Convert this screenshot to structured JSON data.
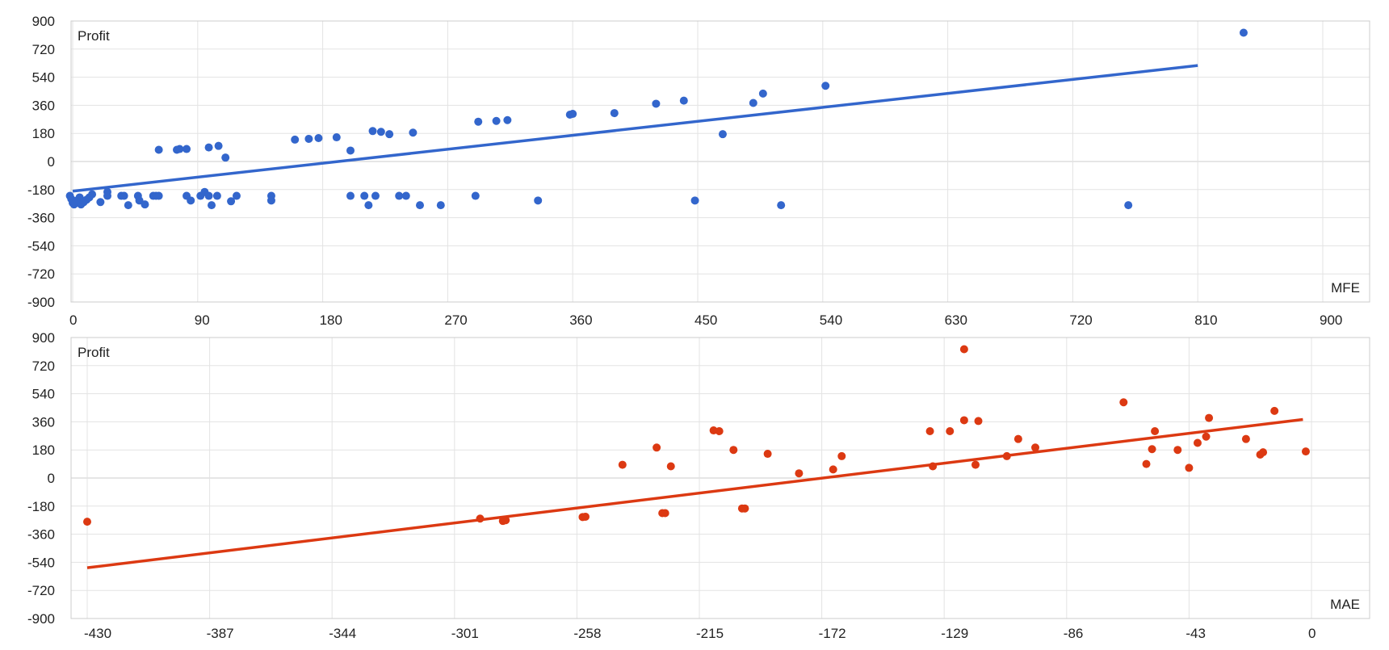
{
  "chart_data": [
    {
      "type": "scatter",
      "ylabel": "Profit",
      "xlabel": "MFE",
      "xlim": [
        0,
        900
      ],
      "ylim": [
        -900,
        900
      ],
      "x_ticks": [
        0,
        90,
        180,
        270,
        360,
        450,
        540,
        630,
        720,
        810,
        900
      ],
      "y_ticks": [
        900,
        720,
        540,
        360,
        180,
        0,
        -180,
        -360,
        -540,
        -720,
        -900
      ],
      "grid": true,
      "point_color": "#3366cc",
      "trendline_color": "#3366cc",
      "trendline": [
        [
          0,
          -190
        ],
        [
          810,
          615
        ]
      ],
      "points": [
        [
          -2,
          -220
        ],
        [
          -1,
          -240
        ],
        [
          0,
          -265
        ],
        [
          1,
          -275
        ],
        [
          3,
          -250
        ],
        [
          5,
          -230
        ],
        [
          6,
          -275
        ],
        [
          8,
          -260
        ],
        [
          10,
          -245
        ],
        [
          12,
          -230
        ],
        [
          14,
          -210
        ],
        [
          20,
          -260
        ],
        [
          25,
          -195
        ],
        [
          25,
          -220
        ],
        [
          35,
          -220
        ],
        [
          37,
          -220
        ],
        [
          40,
          -280
        ],
        [
          47,
          -220
        ],
        [
          48,
          -250
        ],
        [
          52,
          -275
        ],
        [
          58,
          -220
        ],
        [
          60,
          -220
        ],
        [
          62,
          -220
        ],
        [
          62,
          75
        ],
        [
          75,
          75
        ],
        [
          77,
          80
        ],
        [
          82,
          80
        ],
        [
          82,
          -220
        ],
        [
          85,
          -250
        ],
        [
          92,
          -220
        ],
        [
          95,
          -195
        ],
        [
          98,
          -220
        ],
        [
          98,
          90
        ],
        [
          100,
          -280
        ],
        [
          104,
          -220
        ],
        [
          105,
          100
        ],
        [
          110,
          25
        ],
        [
          114,
          -255
        ],
        [
          118,
          -220
        ],
        [
          143,
          -220
        ],
        [
          143,
          -250
        ],
        [
          160,
          140
        ],
        [
          170,
          145
        ],
        [
          177,
          150
        ],
        [
          190,
          155
        ],
        [
          200,
          -220
        ],
        [
          200,
          70
        ],
        [
          210,
          -220
        ],
        [
          213,
          -280
        ],
        [
          216,
          195
        ],
        [
          218,
          -220
        ],
        [
          222,
          190
        ],
        [
          228,
          175
        ],
        [
          235,
          -220
        ],
        [
          240,
          -220
        ],
        [
          245,
          185
        ],
        [
          250,
          -280
        ],
        [
          265,
          -280
        ],
        [
          290,
          -220
        ],
        [
          292,
          255
        ],
        [
          305,
          260
        ],
        [
          313,
          265
        ],
        [
          335,
          -250
        ],
        [
          358,
          300
        ],
        [
          360,
          305
        ],
        [
          390,
          310
        ],
        [
          420,
          370
        ],
        [
          440,
          390
        ],
        [
          448,
          -250
        ],
        [
          468,
          175
        ],
        [
          490,
          375
        ],
        [
          497,
          435
        ],
        [
          510,
          -280
        ],
        [
          542,
          485
        ],
        [
          760,
          -280
        ],
        [
          843,
          825
        ]
      ],
      "point_coords_note": ""
    },
    {
      "type": "scatter",
      "ylabel": "Profit",
      "xlabel": "MAE",
      "xlim": [
        -430,
        0
      ],
      "ylim": [
        -900,
        900
      ],
      "x_ticks": [
        -430,
        -387,
        -344,
        -301,
        -258,
        -215,
        -172,
        -129,
        -86,
        -43,
        0
      ],
      "y_ticks": [
        900,
        720,
        540,
        360,
        180,
        0,
        -180,
        -360,
        -540,
        -720,
        -900
      ],
      "grid": true,
      "point_color": "#dc3912",
      "trendline_color": "#dc3912",
      "trendline": [
        [
          -430,
          -575
        ],
        [
          -3,
          375
        ]
      ],
      "points": [
        [
          -430,
          -280
        ],
        [
          -292,
          -260
        ],
        [
          -284,
          -275
        ],
        [
          -283,
          -270
        ],
        [
          -256,
          -250
        ],
        [
          -255,
          -248
        ],
        [
          -242,
          85
        ],
        [
          -230,
          195
        ],
        [
          -228,
          -225
        ],
        [
          -227,
          -225
        ],
        [
          -225,
          75
        ],
        [
          -210,
          305
        ],
        [
          -208,
          300
        ],
        [
          -203,
          180
        ],
        [
          -200,
          -195
        ],
        [
          -199,
          -195
        ],
        [
          -191,
          155
        ],
        [
          -180,
          30
        ],
        [
          -168,
          55
        ],
        [
          -165,
          140
        ],
        [
          -134,
          300
        ],
        [
          -133,
          75
        ],
        [
          -127,
          300
        ],
        [
          -122,
          370
        ],
        [
          -122,
          825
        ],
        [
          -118,
          85
        ],
        [
          -117,
          365
        ],
        [
          -107,
          140
        ],
        [
          -103,
          250
        ],
        [
          -97,
          195
        ],
        [
          -66,
          485
        ],
        [
          -58,
          90
        ],
        [
          -56,
          185
        ],
        [
          -55,
          300
        ],
        [
          -47,
          180
        ],
        [
          -43,
          65
        ],
        [
          -40,
          225
        ],
        [
          -37,
          265
        ],
        [
          -36,
          385
        ],
        [
          -23,
          250
        ],
        [
          -18,
          150
        ],
        [
          -17,
          165
        ],
        [
          -13,
          430
        ],
        [
          -2,
          170
        ]
      ]
    }
  ]
}
